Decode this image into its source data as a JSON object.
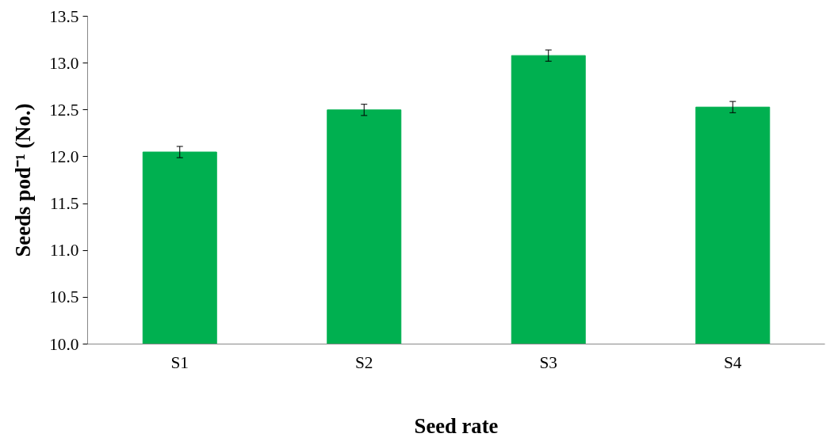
{
  "chart_data": {
    "type": "bar",
    "xlabel": "Seed rate",
    "ylabel": "Seeds pod⁻¹ (No.)",
    "categories": [
      "S1",
      "S2",
      "S3",
      "S4"
    ],
    "values": [
      12.05,
      12.5,
      13.08,
      12.53
    ],
    "errors": [
      0.06,
      0.06,
      0.06,
      0.06
    ],
    "color": "#00b050",
    "ylim": [
      10.0,
      13.5
    ],
    "yticks": [
      {
        "value": 10,
        "label": "10.0"
      },
      {
        "value": 10.5,
        "label": "10.5"
      },
      {
        "value": 11,
        "label": "11.0"
      },
      {
        "value": 11.5,
        "label": "11.5"
      },
      {
        "value": 12,
        "label": "12.0"
      },
      {
        "value": 12.5,
        "label": "12.5"
      },
      {
        "value": 13,
        "label": "13.0"
      },
      {
        "value": 13.5,
        "label": "13.5"
      }
    ],
    "grid": false
  }
}
